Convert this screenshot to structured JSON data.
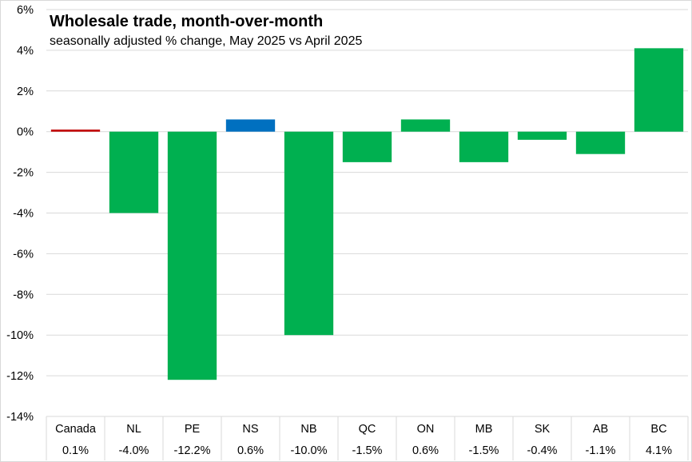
{
  "chart_data": {
    "type": "bar",
    "title": "Wholesale trade, month-over-month",
    "subtitle": "seasonally adjusted % change, May 2025 vs April 2025",
    "categories": [
      "Canada",
      "NL",
      "PE",
      "NS",
      "NB",
      "QC",
      "ON",
      "MB",
      "SK",
      "AB",
      "BC"
    ],
    "values": [
      0.1,
      -4.0,
      -12.2,
      0.6,
      -10.0,
      -1.5,
      0.6,
      -1.5,
      -0.4,
      -1.1,
      4.1
    ],
    "value_labels": [
      "0.1%",
      "-4.0%",
      "-12.2%",
      "0.6%",
      "-10.0%",
      "-1.5%",
      "0.6%",
      "-1.5%",
      "-0.4%",
      "-1.1%",
      "4.1%"
    ],
    "ylim": [
      -14,
      6
    ],
    "yticks": [
      6,
      4,
      2,
      0,
      -2,
      -4,
      -6,
      -8,
      -10,
      -12,
      -14
    ],
    "ytick_labels": [
      "6%",
      "4%",
      "2%",
      "0%",
      "-2%",
      "-4%",
      "-6%",
      "-8%",
      "-10%",
      "-12%",
      "-14%"
    ],
    "xlabel": "",
    "ylabel": "",
    "grid": true,
    "legend": "none",
    "data_table_below": true,
    "colors": {
      "provinces": "#00b050",
      "canada": "#c00000",
      "ns": "#0070c0",
      "gridline": "#d9d9d9"
    }
  }
}
